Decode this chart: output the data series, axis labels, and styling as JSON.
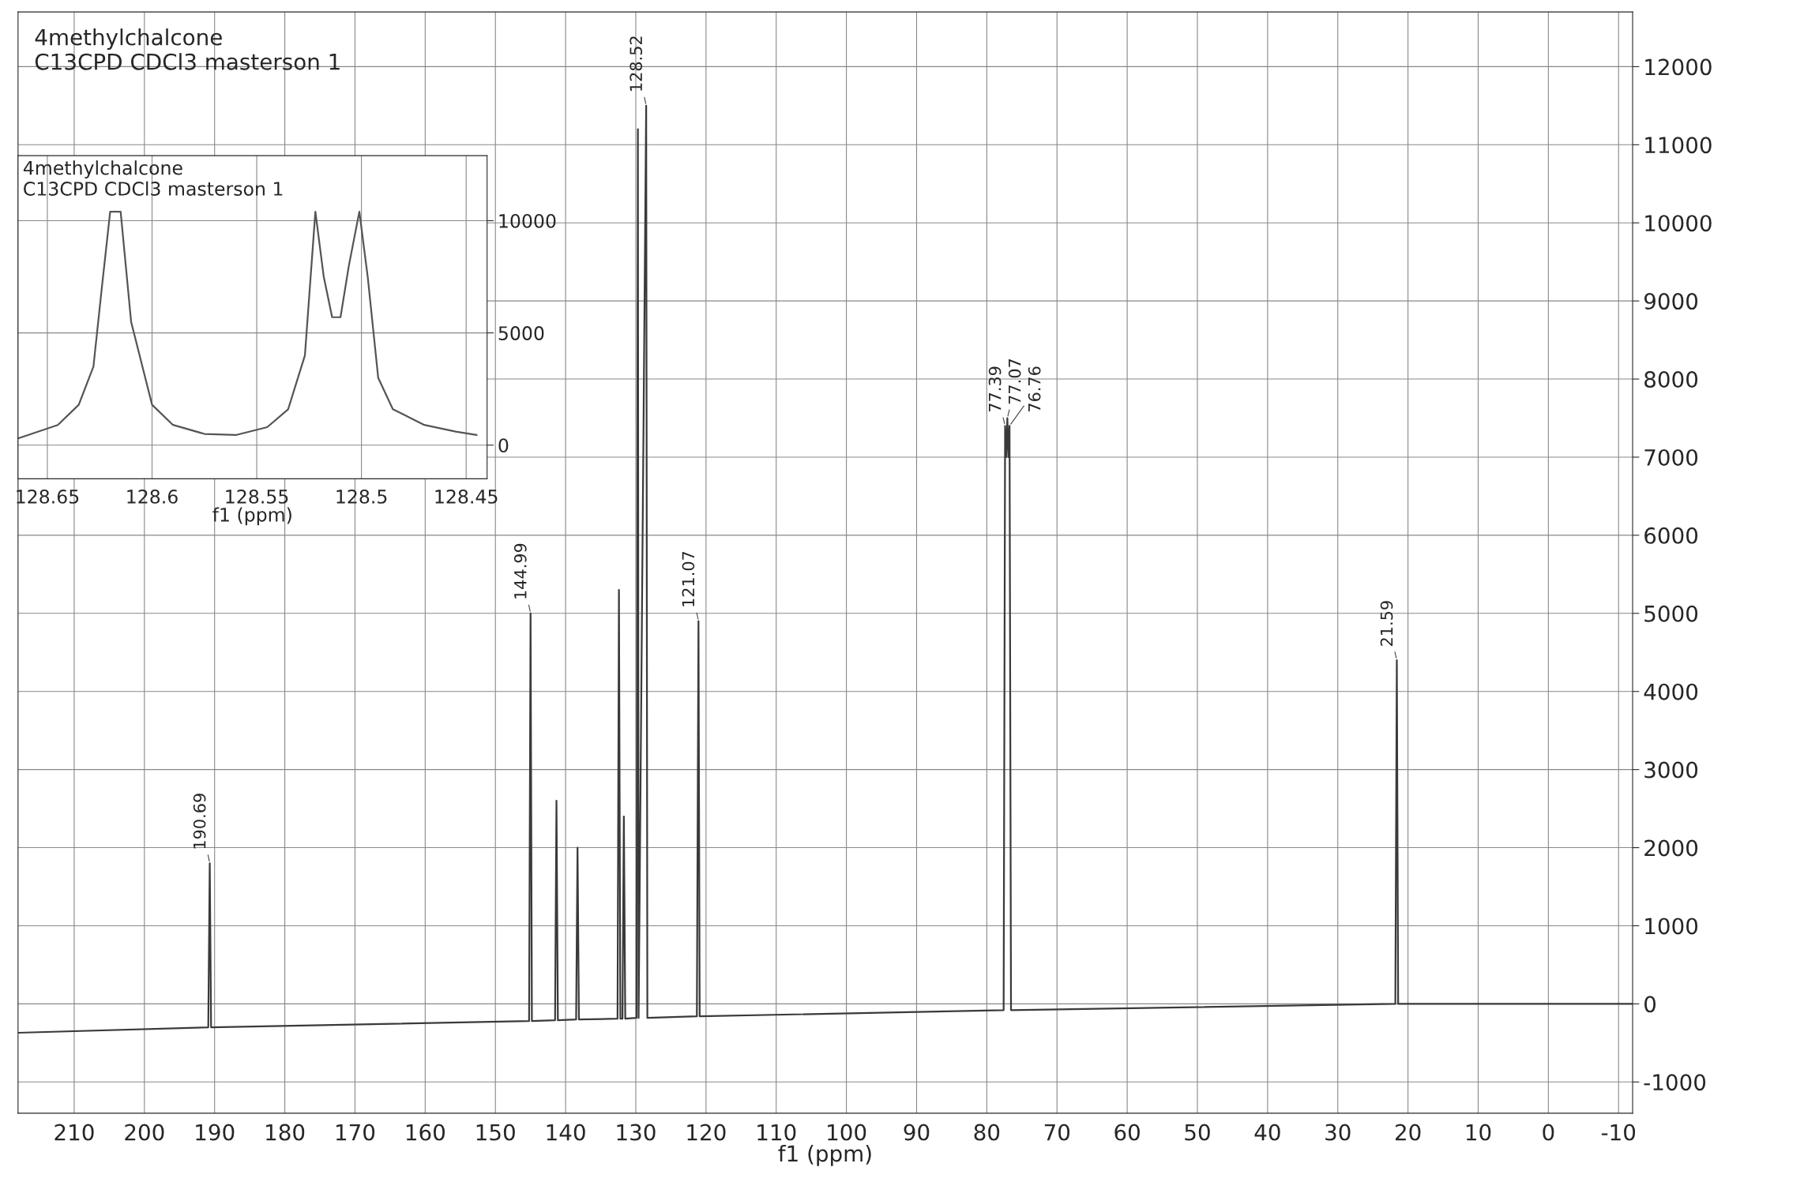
{
  "chart_data": [
    {
      "type": "line",
      "title": "4methylchalcone",
      "subtitle": "C13CPD CDCl3 masterson 1",
      "xlabel": "f1 (ppm)",
      "xlim": [
        218,
        -12
      ],
      "xticks": [
        210,
        200,
        190,
        180,
        170,
        160,
        150,
        140,
        130,
        120,
        110,
        100,
        90,
        80,
        70,
        60,
        50,
        40,
        30,
        20,
        10,
        0,
        -10
      ],
      "ylim": [
        -1400,
        12700
      ],
      "yticks": [
        -1000,
        0,
        1000,
        2000,
        3000,
        4000,
        5000,
        6000,
        7000,
        8000,
        9000,
        10000,
        11000,
        12000
      ],
      "grid": true,
      "legend": false,
      "series": [
        {
          "color": "#3a3a3a",
          "x": [
            218,
            190.9,
            190.69,
            190.5,
            145.2,
            144.99,
            144.8,
            141.5,
            141.3,
            141.1,
            138.5,
            138.3,
            138.1,
            132.6,
            132.4,
            132.2,
            131.9,
            131.7,
            131.5,
            129.9,
            129.7,
            129.6,
            128.52,
            128.35,
            121.3,
            121.07,
            120.9,
            77.6,
            77.39,
            77.23,
            77.07,
            76.91,
            76.76,
            76.55,
            21.8,
            21.59,
            21.4,
            -12
          ],
          "values": [
            -370,
            -300,
            1800,
            -300,
            -220,
            5000,
            -220,
            -210,
            2600,
            -210,
            -200,
            2000,
            -200,
            -190,
            5300,
            -190,
            -190,
            2400,
            -190,
            -180,
            11200,
            -180,
            11500,
            -180,
            -160,
            4900,
            -160,
            -80,
            7400,
            7000,
            7500,
            7000,
            7400,
            -80,
            0,
            4400,
            0,
            0
          ]
        }
      ],
      "annotations": [
        {
          "text": "190.69",
          "x": 190.69,
          "y": 1800
        },
        {
          "text": "144.99",
          "x": 144.99,
          "y": 5000
        },
        {
          "text": "128.52",
          "x": 128.52,
          "y": 11500
        },
        {
          "text": "121.07",
          "x": 121.07,
          "y": 4900
        },
        {
          "text": "77.39",
          "x": 77.39,
          "y": 7400
        },
        {
          "text": "77.07",
          "x": 77.07,
          "y": 7500
        },
        {
          "text": "76.76",
          "x": 76.76,
          "y": 7400
        },
        {
          "text": "21.59",
          "x": 21.59,
          "y": 4400
        }
      ]
    },
    {
      "type": "line",
      "title": "4methylchalcone",
      "subtitle": "C13CPD CDCl3 masterson 1",
      "xlabel": "f1 (ppm)",
      "xlim": [
        128.664,
        128.44
      ],
      "xticks": [
        128.65,
        128.6,
        128.55,
        128.5,
        128.45
      ],
      "ylim": [
        -1500,
        12900
      ],
      "yticks": [
        0,
        5000,
        10000
      ],
      "grid": true,
      "legend": false,
      "series": [
        {
          "color": "#555555",
          "x": [
            128.664,
            128.645,
            128.635,
            128.628,
            128.624,
            128.62,
            128.615,
            128.61,
            128.6,
            128.59,
            128.575,
            128.56,
            128.545,
            128.535,
            128.527,
            128.522,
            128.518,
            128.514,
            128.51,
            128.506,
            128.501,
            128.497,
            128.492,
            128.485,
            128.47,
            128.455,
            128.445
          ],
          "values": [
            300,
            900,
            1800,
            3500,
            7000,
            10400,
            10400,
            5500,
            1800,
            900,
            500,
            450,
            800,
            1600,
            4000,
            10400,
            7500,
            5700,
            5700,
            8000,
            10400,
            7500,
            3000,
            1600,
            900,
            600,
            450
          ]
        }
      ]
    }
  ]
}
